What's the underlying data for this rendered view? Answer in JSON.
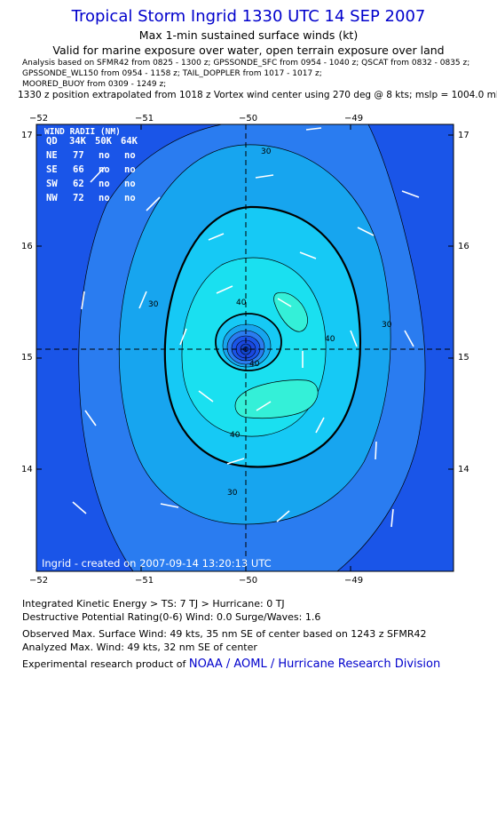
{
  "header": {
    "title": "Tropical Storm Ingrid 1330 UTC 14 SEP 2007",
    "subtitle1": "Max 1-min sustained surface winds (kt)",
    "subtitle2": "Valid for marine exposure over water, open terrain exposure over land",
    "analysis_line1": "Analysis based on  SFMR42 from 0825 - 1300 z;  GPSSONDE_SFC from 0954 - 1040 z;  QSCAT from 0832 - 0835 z;",
    "analysis_line2": "GPSSONDE_WL150 from 0954 - 1158 z;  TAIL_DOPPLER from 1017 - 1017 z;",
    "analysis_line3": "MOORED_BUOY from 0309 - 1249 z;",
    "position_line": "1330 z position extrapolated from 1018 z Vortex wind center using 270 deg @ 8 kts; mslp = 1004.0 mb"
  },
  "map": {
    "lon_ticks": [
      "−52",
      "−51",
      "−50",
      "−49"
    ],
    "lat_ticks": [
      "17",
      "16",
      "15",
      "14"
    ],
    "lon_range": [
      -52,
      -48
    ],
    "lat_range": [
      13.1,
      17.1
    ],
    "center": {
      "lon": -50.0,
      "lat": 15.07
    },
    "contour_labels": [
      "30",
      "30",
      "30",
      "40",
      "40",
      "40",
      "40",
      "30"
    ],
    "footer_text": "Ingrid - created on 2007-09-14 13:20:13 UTC",
    "colors": {
      "outer": "#1a55e8",
      "ring1": "#2a7cf0",
      "ring2": "#17a5ef",
      "ring3": "#16c9f5",
      "ring4": "#1ae0f0",
      "ring5": "#34f0d8",
      "eye_core": "#1144cc"
    }
  },
  "wind_radii": {
    "title": "WIND RADII (NM)",
    "headers": [
      "QD",
      "34K",
      "50K",
      "64K"
    ],
    "rows": [
      [
        "NE",
        "77",
        "no",
        "no"
      ],
      [
        "SE",
        "66",
        "no",
        "no"
      ],
      [
        "SW",
        "62",
        "no",
        "no"
      ],
      [
        "NW",
        "72",
        "no",
        "no"
      ]
    ]
  },
  "info": {
    "ike": "Integrated Kinetic Energy > TS: 7 TJ   > Hurricane: 0 TJ",
    "dpr": "Destructive Potential Rating(0-6)  Wind: 0.0 Surge/Waves: 1.6",
    "observed": "Observed Max. Surface Wind: 49 kts, 35 nm SE of center based on 1243 z SFMR42",
    "analyzed": "Analyzed Max. Wind: 49 kts, 32 nm SE of center",
    "credit_prefix": "Experimental research product of ",
    "credit_link": "NOAA / AOML / Hurricane Research Division"
  }
}
